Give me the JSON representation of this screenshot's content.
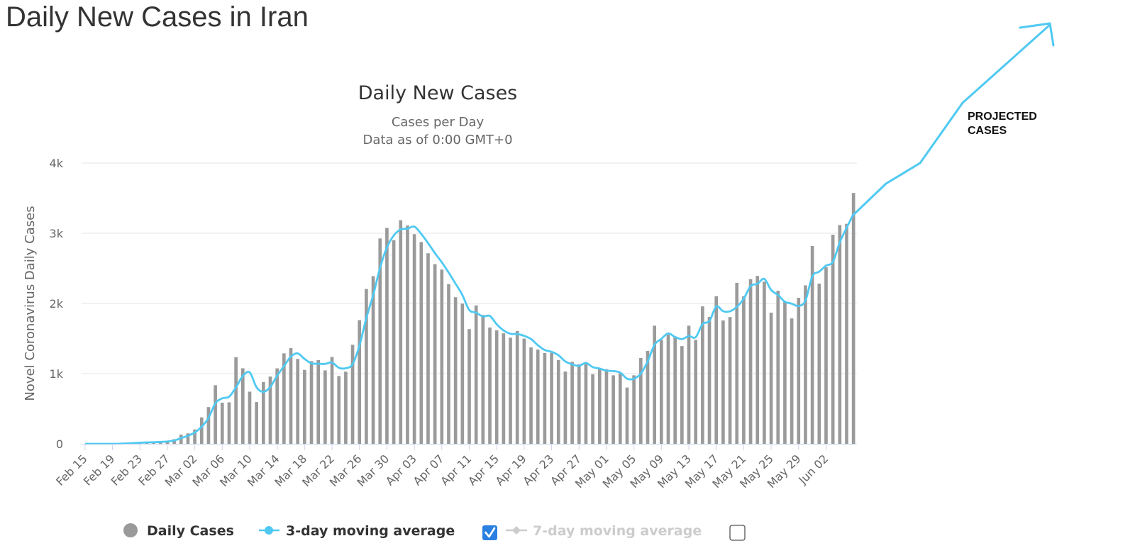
{
  "page": {
    "title": "Daily New Cases in Iran"
  },
  "chart_data": {
    "type": "bar",
    "title": "Daily New Cases",
    "subtitle_lines": [
      "Cases per Day",
      "Data as of 0:00 GMT+0"
    ],
    "ylabel": "Novel Coronavirus Daily Cases",
    "ylim": [
      0,
      4000
    ],
    "yticks": [
      0,
      1000,
      2000,
      3000,
      4000
    ],
    "ytick_labels": [
      "0",
      "1k",
      "2k",
      "3k",
      "4k"
    ],
    "start_date": "Feb 15",
    "x_tick_labels": [
      "Feb 15",
      "Feb 19",
      "Feb 23",
      "Feb 27",
      "Mar 02",
      "Mar 06",
      "Mar 10",
      "Mar 14",
      "Mar 18",
      "Mar 22",
      "Mar 26",
      "Mar 30",
      "Apr 03",
      "Apr 07",
      "Apr 11",
      "Apr 15",
      "Apr 19",
      "Apr 23",
      "Apr 27",
      "May 01",
      "May 05",
      "May 09",
      "May 13",
      "May 17",
      "May 21",
      "May 25",
      "May 29",
      "Jun 02"
    ],
    "x_tick_every": 4,
    "grid": true,
    "legend_position": "bottom",
    "colors": {
      "bars": "#9a9a9a",
      "avg3": "#4fc9f2",
      "avg7_disabled": "#cccccc",
      "checkbox": "#2a7fe0"
    },
    "series": [
      {
        "name": "Daily Cases",
        "type": "bar",
        "values": [
          0,
          0,
          0,
          0,
          0,
          2,
          13,
          15,
          18,
          27,
          20,
          33,
          45,
          66,
          131,
          149,
          204,
          376,
          523,
          835,
          586,
          591,
          1234,
          1076,
          743,
          595,
          881,
          958,
          1075,
          1289,
          1365,
          1209,
          1053,
          1178,
          1192,
          1046,
          1237,
          966,
          1028,
          1411,
          1762,
          2206,
          2389,
          2926,
          3076,
          2901,
          3186,
          3110,
          2987,
          2875,
          2715,
          2560,
          2483,
          2274,
          2089,
          1997,
          1634,
          1972,
          1837,
          1657,
          1617,
          1574,
          1512,
          1606,
          1499,
          1374,
          1343,
          1294,
          1297,
          1194,
          1030,
          1168,
          1134,
          1153,
          991,
          1073,
          1063,
          976,
          1006,
          802,
          976,
          1223,
          1323,
          1683,
          1481,
          1556,
          1529,
          1392,
          1683,
          1481,
          1958,
          1808,
          2102,
          1757,
          1806,
          2294,
          2102,
          2346,
          2392,
          2311,
          1869,
          2180,
          2023,
          1787,
          2080,
          2258,
          2819,
          2282,
          2516,
          2979,
          3117,
          3134,
          3574
        ]
      },
      {
        "name": "3-day moving average",
        "type": "line",
        "values": [
          0,
          0,
          0,
          0,
          0,
          1,
          5,
          10,
          15,
          20,
          22,
          27,
          33,
          48,
          81,
          115,
          161,
          243,
          368,
          578,
          648,
          671,
          804,
          967,
          1018,
          805,
          740,
          811,
          971,
          1107,
          1243,
          1288,
          1209,
          1147,
          1141,
          1139,
          1158,
          1083,
          1077,
          1135,
          1400,
          1793,
          2119,
          2507,
          2797,
          2968,
          3054,
          3066,
          3094,
          2991,
          2859,
          2717,
          2586,
          2439,
          2282,
          2120,
          1907,
          1868,
          1814,
          1822,
          1704,
          1616,
          1568,
          1564,
          1539,
          1493,
          1405,
          1337,
          1311,
          1262,
          1174,
          1131,
          1111,
          1152,
          1093,
          1072,
          1043,
          1037,
          1015,
          928,
          928,
          1000,
          1174,
          1410,
          1496,
          1573,
          1522,
          1492,
          1535,
          1519,
          1707,
          1749,
          1956,
          1889,
          1888,
          1952,
          2067,
          2247,
          2280,
          2350,
          2191,
          2120,
          2024,
          1997,
          1963,
          2042,
          2386,
          2453,
          2539,
          2592,
          2871,
          3077,
          3275
        ]
      },
      {
        "name": "7-day moving average",
        "type": "line",
        "visible": false,
        "values": []
      }
    ],
    "annotations": [
      {
        "text_lines": [
          "PROJECTED",
          "CASES"
        ]
      }
    ]
  },
  "legend": {
    "items": [
      {
        "label": "Daily Cases",
        "enabled": true
      },
      {
        "label": "3-day moving average",
        "enabled": true,
        "checked": true
      },
      {
        "label": "7-day moving average",
        "enabled": false,
        "checked": false
      }
    ]
  }
}
